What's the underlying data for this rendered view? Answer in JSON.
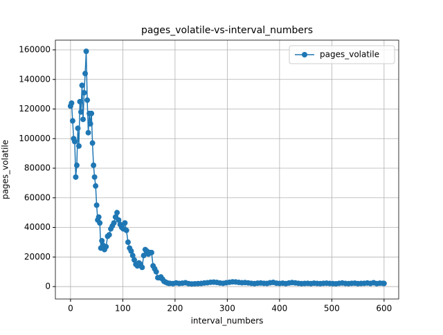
{
  "chart_data": {
    "type": "line",
    "title": "pages_volatile-vs-interval_numbers",
    "x_label": "interval_numbers",
    "y_label": "pages_volatile",
    "x": [
      0,
      2,
      4,
      6,
      8,
      10,
      12,
      14,
      16,
      18,
      20,
      22,
      24,
      26,
      28,
      30,
      32,
      34,
      36,
      38,
      40,
      42,
      44,
      46,
      48,
      50,
      52,
      54,
      56,
      58,
      60,
      62,
      65,
      68,
      71,
      74,
      77,
      80,
      83,
      86,
      89,
      92,
      95,
      98,
      101,
      104,
      107,
      110,
      113,
      116,
      119,
      122,
      125,
      128,
      131,
      134,
      137,
      140,
      143,
      146,
      149,
      152,
      155,
      158,
      161,
      164,
      167,
      170,
      173,
      176,
      179,
      182,
      185,
      188,
      190,
      196,
      202,
      208,
      214,
      220,
      226,
      232,
      238,
      244,
      250,
      256,
      262,
      268,
      274,
      280,
      286,
      292,
      298,
      304,
      310,
      316,
      322,
      328,
      334,
      340,
      346,
      352,
      358,
      364,
      370,
      376,
      382,
      388,
      394,
      400,
      406,
      412,
      418,
      424,
      430,
      436,
      442,
      448,
      454,
      460,
      466,
      472,
      478,
      484,
      490,
      496,
      502,
      508,
      514,
      520,
      526,
      532,
      538,
      544,
      550,
      556,
      562,
      568,
      574,
      580,
      586,
      592,
      598,
      600
    ],
    "series": [
      {
        "name": "pages_volatile",
        "color": "#1f77b4",
        "values": [
          122000,
          124000,
          112000,
          100000,
          98000,
          74000,
          82000,
          107000,
          95000,
          125000,
          118000,
          136000,
          113000,
          131000,
          144000,
          159000,
          126000,
          104000,
          117000,
          110000,
          117000,
          97000,
          82000,
          74000,
          68000,
          55000,
          45000,
          47000,
          43000,
          26000,
          31000,
          28000,
          25000,
          27000,
          34000,
          35000,
          39000,
          41000,
          43000,
          47000,
          50000,
          45000,
          42000,
          40000,
          39000,
          43000,
          38000,
          30000,
          26000,
          24000,
          21000,
          18000,
          15000,
          14000,
          16000,
          15000,
          13000,
          21000,
          25000,
          24000,
          22000,
          23000,
          23000,
          14000,
          12000,
          10000,
          6000,
          6000,
          6500,
          5000,
          3500,
          3000,
          2500,
          2200,
          2200,
          2000,
          2500,
          2100,
          2300,
          2600,
          2000,
          1800,
          1900,
          2000,
          2100,
          2400,
          2600,
          2900,
          3000,
          2800,
          2400,
          2200,
          2600,
          2900,
          3200,
          3100,
          2800,
          2600,
          2700,
          2500,
          2200,
          2000,
          2300,
          2400,
          2200,
          2100,
          2600,
          2800,
          2300,
          2100,
          2300,
          2000,
          2400,
          2700,
          2500,
          2200,
          2000,
          2100,
          2200,
          2000,
          2300,
          2100,
          2000,
          2200,
          2300,
          2100,
          2000,
          1900,
          2200,
          2400,
          2100,
          2000,
          2200,
          2300,
          2000,
          2100,
          2200,
          2400,
          2100,
          2600,
          2000,
          2300,
          2200,
          2100
        ]
      }
    ],
    "xlim": [
      -29,
      628
    ],
    "ylim": [
      -8400,
      166550
    ],
    "xticks": [
      0,
      100,
      200,
      300,
      400,
      500,
      600
    ],
    "yticks": [
      0,
      20000,
      40000,
      60000,
      80000,
      100000,
      120000,
      140000,
      160000
    ],
    "grid": true,
    "legend": "upper right"
  }
}
